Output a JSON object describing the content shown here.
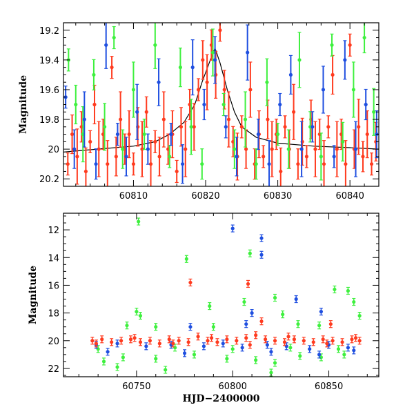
{
  "chart_data": [
    {
      "type": "scatter",
      "title": "",
      "xlabel": "",
      "ylabel": "Magnitude",
      "xlim": [
        60800.3,
        60844
      ],
      "ylim": [
        20.25,
        19.15
      ],
      "y_inverted": true,
      "xticks": [
        60810,
        60820,
        60830,
        60840
      ],
      "yticks": [
        19.2,
        19.4,
        19.6,
        19.8,
        20,
        20.2
      ],
      "ytick_labels": [
        "19.2",
        "19.4",
        "19.6",
        "19.8",
        "20",
        "20.2"
      ],
      "series": [
        {
          "color": "#ff3b1f",
          "points": [
            [
              60800.9,
              20.1
            ],
            [
              60801.5,
              19.9
            ],
            [
              60802.2,
              20.05
            ],
            [
              60802.8,
              19.85
            ],
            [
              60803.4,
              20.15
            ],
            [
              60804.0,
              19.95
            ],
            [
              60804.6,
              19.7
            ],
            [
              60805.2,
              20.0
            ],
            [
              60805.8,
              19.9
            ],
            [
              60806.4,
              20.1
            ],
            [
              60807.0,
              19.45
            ],
            [
              60807.6,
              20.05
            ],
            [
              60808.2,
              19.8
            ],
            [
              60808.8,
              20.0
            ],
            [
              60809.4,
              19.9
            ],
            [
              60810.0,
              20.1
            ],
            [
              60810.6,
              19.85
            ],
            [
              60811.2,
              20.0
            ],
            [
              60811.8,
              19.75
            ],
            [
              60812.4,
              20.1
            ],
            [
              60813.0,
              19.95
            ],
            [
              60813.6,
              20.05
            ],
            [
              60814.2,
              19.8
            ],
            [
              60814.8,
              20.0
            ],
            [
              60815.4,
              19.9
            ],
            [
              60816.0,
              20.15
            ],
            [
              60816.6,
              19.85
            ],
            [
              60817.2,
              20.0
            ],
            [
              60817.8,
              19.7
            ],
            [
              60818.4,
              19.85
            ],
            [
              60819.0,
              19.6
            ],
            [
              60819.6,
              19.4
            ],
            [
              60820.2,
              19.55
            ],
            [
              60820.8,
              19.3
            ],
            [
              60821.4,
              19.5
            ],
            [
              60822.0,
              19.2
            ],
            [
              60822.6,
              19.6
            ],
            [
              60823.2,
              19.8
            ],
            [
              60823.8,
              19.95
            ],
            [
              60824.4,
              20.05
            ],
            [
              60825.0,
              19.85
            ],
            [
              60825.6,
              20.0
            ],
            [
              60826.2,
              19.6
            ],
            [
              60826.8,
              20.1
            ],
            [
              60827.4,
              19.9
            ],
            [
              60828.0,
              20.05
            ],
            [
              60828.6,
              19.8
            ],
            [
              60829.2,
              20.0
            ],
            [
              60829.8,
              19.9
            ],
            [
              60830.4,
              20.15
            ],
            [
              60831.0,
              19.85
            ],
            [
              60831.6,
              20.0
            ],
            [
              60832.2,
              19.75
            ],
            [
              60832.8,
              20.1
            ],
            [
              60833.4,
              19.95
            ],
            [
              60834.0,
              20.05
            ],
            [
              60834.6,
              19.8
            ],
            [
              60835.2,
              20.0
            ],
            [
              60835.8,
              19.9
            ],
            [
              60836.4,
              20.1
            ],
            [
              60837.0,
              19.85
            ],
            [
              60837.6,
              19.5
            ],
            [
              60838.2,
              20.0
            ],
            [
              60838.8,
              19.9
            ],
            [
              60839.4,
              20.1
            ],
            [
              60840.0,
              19.3
            ],
            [
              60840.6,
              20.0
            ],
            [
              60841.2,
              19.85
            ],
            [
              60841.8,
              20.05
            ],
            [
              60842.4,
              19.9
            ],
            [
              60843.0,
              20.1
            ],
            [
              60843.6,
              19.95
            ]
          ]
        },
        {
          "color": "#3ef03e",
          "points": [
            [
              60801.0,
              19.4
            ],
            [
              60802.0,
              19.7
            ],
            [
              60803.0,
              19.9
            ],
            [
              60804.5,
              19.5
            ],
            [
              60806.0,
              19.85
            ],
            [
              60807.3,
              19.25
            ],
            [
              60808.5,
              20.0
            ],
            [
              60810.0,
              19.6
            ],
            [
              60811.5,
              19.9
            ],
            [
              60813.0,
              19.3
            ],
            [
              60815.0,
              20.05
            ],
            [
              60816.5,
              19.45
            ],
            [
              60818.0,
              19.85
            ],
            [
              60819.5,
              20.1
            ],
            [
              60821.0,
              19.35
            ],
            [
              60822.5,
              19.7
            ],
            [
              60824.0,
              20.0
            ],
            [
              60825.5,
              19.8
            ],
            [
              60827.0,
              20.1
            ],
            [
              60828.5,
              19.55
            ],
            [
              60830.0,
              19.9
            ],
            [
              60831.5,
              20.0
            ],
            [
              60833.0,
              19.4
            ],
            [
              60834.5,
              19.85
            ],
            [
              60836.0,
              20.05
            ],
            [
              60837.5,
              19.3
            ],
            [
              60839.0,
              19.95
            ],
            [
              60840.5,
              19.6
            ],
            [
              60842.0,
              19.25
            ],
            [
              60843.3,
              19.75
            ]
          ]
        },
        {
          "color": "#1f4fe0",
          "points": [
            [
              60800.6,
              19.65
            ],
            [
              60801.8,
              20.0
            ],
            [
              60803.2,
              19.8
            ],
            [
              60804.8,
              20.1
            ],
            [
              60806.2,
              19.3
            ],
            [
              60807.8,
              19.9
            ],
            [
              60809.0,
              20.05
            ],
            [
              60810.5,
              19.75
            ],
            [
              60812.0,
              20.0
            ],
            [
              60813.5,
              19.55
            ],
            [
              60815.2,
              19.9
            ],
            [
              60816.8,
              20.1
            ],
            [
              60818.2,
              19.45
            ],
            [
              60819.8,
              19.7
            ],
            [
              60821.3,
              19.4
            ],
            [
              60822.8,
              19.85
            ],
            [
              60824.3,
              20.05
            ],
            [
              60825.8,
              19.35
            ],
            [
              60827.3,
              19.9
            ],
            [
              60828.8,
              20.1
            ],
            [
              60830.3,
              19.7
            ],
            [
              60831.8,
              19.5
            ],
            [
              60833.3,
              20.0
            ],
            [
              60834.8,
              19.85
            ],
            [
              60836.3,
              19.6
            ],
            [
              60837.8,
              20.05
            ],
            [
              60839.3,
              19.4
            ],
            [
              60840.8,
              20.0
            ],
            [
              60842.2,
              19.7
            ],
            [
              60843.7,
              19.9
            ]
          ]
        }
      ],
      "model_curve": {
        "color": "#000000",
        "points": [
          [
            60800.3,
            20.02
          ],
          [
            60805,
            20.0
          ],
          [
            60810,
            19.98
          ],
          [
            60813,
            19.95
          ],
          [
            60815,
            19.9
          ],
          [
            60817,
            19.82
          ],
          [
            60818.5,
            19.7
          ],
          [
            60819.5,
            19.55
          ],
          [
            60820.5,
            19.42
          ],
          [
            60821.3,
            19.32
          ],
          [
            60822,
            19.42
          ],
          [
            60823,
            19.6
          ],
          [
            60824,
            19.75
          ],
          [
            60825,
            19.85
          ],
          [
            60827,
            19.92
          ],
          [
            60830,
            19.96
          ],
          [
            60835,
            19.98
          ],
          [
            60840,
            19.99
          ],
          [
            60844,
            20.0
          ]
        ]
      }
    },
    {
      "type": "scatter",
      "title": "",
      "xlabel": "HJD−2400000",
      "ylabel": "Magnitude",
      "xlim": [
        60712,
        60876
      ],
      "ylim": [
        22.6,
        10.8
      ],
      "y_inverted": true,
      "xticks": [
        60750,
        60800,
        60850
      ],
      "yticks": [
        12,
        14,
        16,
        18,
        20,
        22
      ],
      "series": [
        {
          "color": "#3ef03e",
          "points": [
            [
              60751,
              11.4
            ],
            [
              60750,
              17.9
            ],
            [
              60752,
              18.2
            ],
            [
              60745,
              18.9
            ],
            [
              60760,
              19.0
            ],
            [
              60776,
              14.1
            ],
            [
              60788,
              17.5
            ],
            [
              60790,
              19.0
            ],
            [
              60809,
              13.7
            ],
            [
              60806,
              17.2
            ],
            [
              60822,
              16.9
            ],
            [
              60826,
              18.1
            ],
            [
              60834,
              18.8
            ],
            [
              60845,
              18.9
            ],
            [
              60853,
              16.3
            ],
            [
              60860,
              16.4
            ],
            [
              60863,
              17.2
            ],
            [
              60866,
              18.2
            ],
            [
              60835,
              21.1
            ],
            [
              60822,
              21.6
            ],
            [
              60733,
              21.5
            ],
            [
              60743,
              21.2
            ],
            [
              60760,
              21.3
            ],
            [
              60780,
              21.0
            ],
            [
              60797,
              21.3
            ],
            [
              60812,
              21.4
            ],
            [
              60846,
              21.2
            ],
            [
              60858,
              21.0
            ],
            [
              60740,
              21.9
            ],
            [
              60765,
              22.1
            ],
            [
              60820,
              22.3
            ],
            [
              60730,
              20.6
            ],
            [
              60770,
              20.5
            ],
            [
              60800,
              20.6
            ],
            [
              60830,
              20.5
            ],
            [
              60855,
              20.6
            ]
          ]
        },
        {
          "color": "#1f4fe0",
          "points": [
            [
              60800,
              11.9
            ],
            [
              60815,
              12.6
            ],
            [
              60815,
              13.8
            ],
            [
              60833,
              17.0
            ],
            [
              60846,
              17.9
            ],
            [
              60778,
              19.0
            ],
            [
              60807,
              18.8
            ],
            [
              60810,
              18.0
            ],
            [
              60729,
              20.3
            ],
            [
              60740,
              20.2
            ],
            [
              60755,
              20.4
            ],
            [
              60768,
              20.3
            ],
            [
              60785,
              20.4
            ],
            [
              60795,
              20.2
            ],
            [
              60805,
              20.5
            ],
            [
              60818,
              20.3
            ],
            [
              60828,
              20.4
            ],
            [
              60840,
              20.6
            ],
            [
              60850,
              20.3
            ],
            [
              60860,
              20.5
            ],
            [
              60735,
              20.8
            ],
            [
              60775,
              20.9
            ],
            [
              60820,
              20.8
            ],
            [
              60845,
              21.0
            ],
            [
              60863,
              20.7
            ]
          ]
        },
        {
          "color": "#ff3b1f",
          "points": [
            [
              60778,
              15.8
            ],
            [
              60808,
              15.9
            ],
            [
              60815,
              18.6
            ],
            [
              60851,
              18.8
            ],
            [
              60727,
              20.0
            ],
            [
              60732,
              19.9
            ],
            [
              60737,
              20.1
            ],
            [
              60742,
              20.0
            ],
            [
              60747,
              19.9
            ],
            [
              60752,
              20.1
            ],
            [
              60757,
              20.0
            ],
            [
              60762,
              20.2
            ],
            [
              60767,
              19.9
            ],
            [
              60772,
              20.0
            ],
            [
              60777,
              20.1
            ],
            [
              60782,
              19.7
            ],
            [
              60787,
              20.0
            ],
            [
              60792,
              20.1
            ],
            [
              60797,
              19.9
            ],
            [
              60802,
              20.0
            ],
            [
              60807,
              19.8
            ],
            [
              60812,
              19.6
            ],
            [
              60817,
              19.9
            ],
            [
              60822,
              20.0
            ],
            [
              60827,
              20.1
            ],
            [
              60832,
              19.9
            ],
            [
              60837,
              20.0
            ],
            [
              60842,
              20.1
            ],
            [
              60847,
              19.9
            ],
            [
              60852,
              20.0
            ],
            [
              60857,
              20.1
            ],
            [
              60862,
              19.9
            ],
            [
              60866,
              20.0
            ],
            [
              60729,
              20.2
            ],
            [
              60749,
              19.8
            ],
            [
              60769,
              20.2
            ],
            [
              60789,
              19.8
            ],
            [
              60809,
              20.3
            ],
            [
              60829,
              19.7
            ],
            [
              60849,
              20.2
            ],
            [
              60864,
              19.8
            ]
          ]
        }
      ]
    }
  ]
}
